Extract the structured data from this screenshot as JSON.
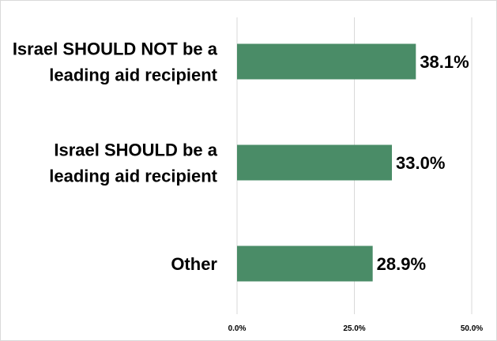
{
  "chart_data": {
    "type": "bar",
    "orientation": "horizontal",
    "title": "",
    "xlabel": "",
    "ylabel": "",
    "categories": [
      [
        "Israel SHOULD NOT be a",
        "leading aid recipient"
      ],
      [
        "Israel SHOULD be a",
        "leading aid recipient"
      ],
      [
        "Other"
      ]
    ],
    "values": [
      38.1,
      33.0,
      28.9
    ],
    "data_labels": [
      "38.1%",
      "33.0%",
      "28.9%"
    ],
    "xlim": [
      0,
      50
    ],
    "xticks": [
      0,
      25,
      50
    ],
    "xtick_labels": [
      "0.0%",
      "25.0%",
      "50.0%"
    ],
    "grid": "vertical",
    "bar_color": "#4a8c67"
  }
}
